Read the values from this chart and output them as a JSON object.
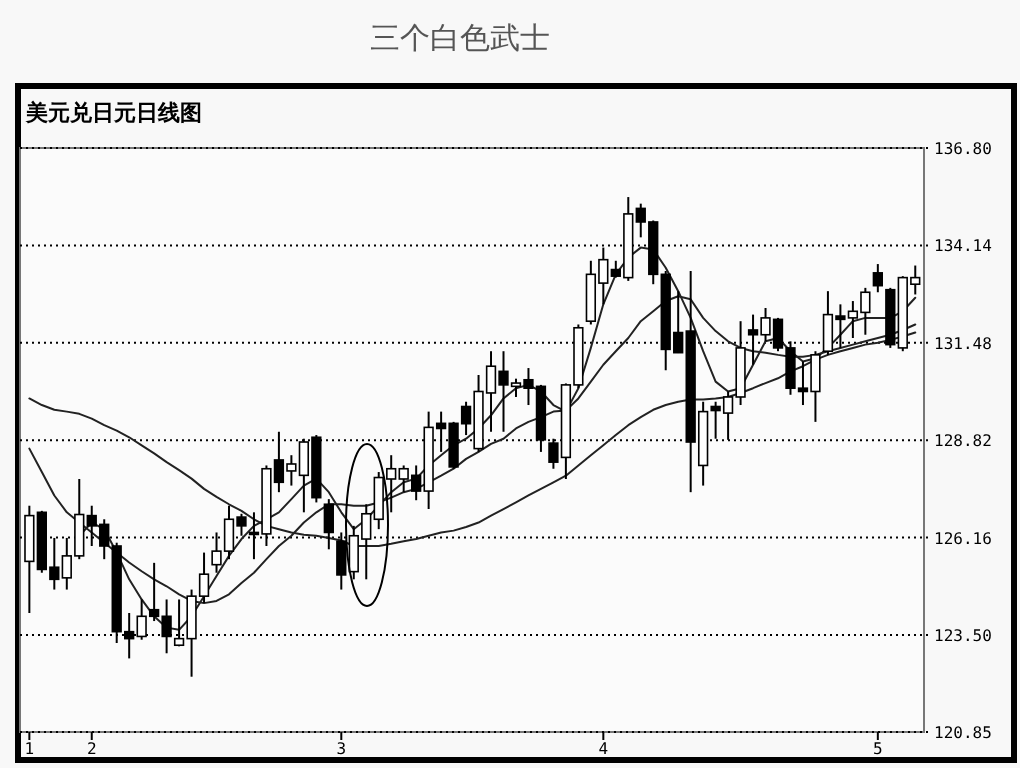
{
  "chart_data": {
    "type": "candlestick",
    "title": "三个白色武士",
    "subtitle": "美元兑日元日线图",
    "categories": [
      "1",
      null,
      null,
      null,
      null,
      "2",
      null,
      null,
      null,
      null,
      null,
      null,
      null,
      null,
      null,
      null,
      null,
      null,
      null,
      null,
      null,
      null,
      null,
      null,
      null,
      "3",
      null,
      null,
      null,
      null,
      null,
      null,
      null,
      null,
      null,
      null,
      null,
      null,
      null,
      null,
      null,
      null,
      null,
      null,
      null,
      null,
      "4",
      null,
      null,
      null,
      null,
      null,
      null,
      null,
      null,
      null,
      null,
      null,
      null,
      null,
      null,
      null,
      null,
      null,
      null,
      null,
      null,
      null,
      "5",
      null,
      null,
      null
    ],
    "ohlc": [
      [
        125.51,
        127.03,
        124.1,
        126.76
      ],
      [
        126.85,
        126.89,
        125.2,
        125.29
      ],
      [
        125.35,
        126.15,
        124.74,
        125.02
      ],
      [
        125.06,
        126.15,
        124.74,
        125.66
      ],
      [
        125.66,
        127.76,
        125.57,
        126.79
      ],
      [
        126.76,
        127.03,
        125.93,
        126.48
      ],
      [
        126.52,
        126.66,
        125.57,
        125.93
      ],
      [
        125.93,
        126.02,
        123.28,
        123.59
      ],
      [
        123.59,
        124.1,
        122.86,
        123.4
      ],
      [
        123.46,
        124.47,
        123.37,
        124.01
      ],
      [
        124.19,
        125.47,
        123.88,
        124.01
      ],
      [
        124.01,
        124.47,
        123.0,
        123.46
      ],
      [
        123.22,
        124.47,
        123.19,
        123.4
      ],
      [
        123.4,
        124.74,
        122.36,
        124.56
      ],
      [
        124.56,
        125.75,
        124.37,
        125.16
      ],
      [
        125.42,
        126.3,
        125.2,
        125.79
      ],
      [
        125.79,
        127.03,
        125.57,
        126.66
      ],
      [
        126.72,
        126.81,
        126.21,
        126.48
      ],
      [
        126.3,
        126.85,
        125.57,
        126.25
      ],
      [
        126.26,
        128.13,
        125.93,
        128.04
      ],
      [
        128.28,
        129.05,
        127.4,
        127.67
      ],
      [
        127.98,
        128.41,
        127.58,
        128.17
      ],
      [
        127.86,
        128.86,
        126.85,
        128.77
      ],
      [
        128.9,
        128.96,
        127.12,
        127.25
      ],
      [
        127.07,
        127.21,
        125.84,
        126.3
      ],
      [
        126.06,
        126.3,
        124.74,
        125.14
      ],
      [
        125.23,
        126.48,
        125.02,
        126.21
      ],
      [
        126.12,
        127.07,
        125.02,
        126.81
      ],
      [
        126.66,
        127.95,
        126.39,
        127.8
      ],
      [
        127.76,
        128.41,
        126.85,
        128.04
      ],
      [
        127.76,
        128.13,
        127.4,
        128.04
      ],
      [
        127.86,
        128.13,
        127.18,
        127.43
      ],
      [
        127.43,
        129.6,
        126.94,
        129.17
      ],
      [
        129.28,
        129.6,
        128.5,
        129.14
      ],
      [
        129.28,
        129.32,
        128.04,
        128.09
      ],
      [
        129.74,
        129.87,
        128.96,
        129.27
      ],
      [
        128.59,
        130.6,
        128.5,
        130.15
      ],
      [
        130.11,
        131.25,
        129.05,
        130.84
      ],
      [
        130.7,
        131.25,
        129.05,
        130.33
      ],
      [
        130.29,
        130.5,
        130.0,
        130.38
      ],
      [
        130.47,
        130.79,
        129.78,
        130.24
      ],
      [
        130.29,
        130.33,
        128.5,
        128.83
      ],
      [
        128.74,
        128.86,
        128.04,
        128.22
      ],
      [
        128.35,
        130.37,
        127.76,
        130.33
      ],
      [
        130.33,
        131.98,
        130.24,
        131.89
      ],
      [
        132.07,
        133.72,
        131.98,
        133.35
      ],
      [
        133.11,
        134.08,
        132.53,
        133.75
      ],
      [
        133.48,
        133.72,
        133.26,
        133.3
      ],
      [
        133.26,
        135.46,
        133.17,
        135.0
      ],
      [
        135.15,
        135.28,
        134.36,
        134.78
      ],
      [
        134.78,
        134.82,
        133.08,
        133.35
      ],
      [
        133.35,
        133.44,
        130.73,
        131.3
      ],
      [
        131.76,
        132.89,
        131.2,
        131.21
      ],
      [
        131.8,
        133.44,
        127.4,
        128.77
      ],
      [
        128.13,
        129.87,
        127.58,
        129.6
      ],
      [
        129.74,
        129.87,
        128.86,
        129.63
      ],
      [
        129.56,
        130.15,
        128.83,
        130.0
      ],
      [
        130.0,
        132.07,
        129.78,
        131.34
      ],
      [
        131.83,
        132.25,
        130.88,
        131.7
      ],
      [
        131.7,
        132.43,
        131.52,
        132.16
      ],
      [
        132.12,
        132.16,
        131.25,
        131.34
      ],
      [
        131.34,
        131.52,
        130.06,
        130.24
      ],
      [
        130.24,
        130.97,
        129.78,
        130.15
      ],
      [
        130.15,
        131.25,
        129.32,
        131.15
      ],
      [
        131.25,
        132.89,
        131.15,
        132.25
      ],
      [
        132.21,
        132.53,
        131.34,
        132.12
      ],
      [
        132.16,
        132.62,
        131.61,
        132.34
      ],
      [
        132.31,
        132.98,
        131.7,
        132.86
      ],
      [
        133.39,
        133.63,
        132.86,
        133.04
      ],
      [
        132.93,
        132.98,
        131.34,
        131.43
      ],
      [
        131.34,
        133.3,
        131.25,
        133.26
      ],
      [
        133.08,
        133.59,
        132.8,
        133.26
      ]
    ],
    "series": [
      {
        "type": "line",
        "color": "#222222",
        "values": [
          null,
          null,
          null,
          null,
          126.21,
          126.57,
          126.39,
          125.75,
          125.02,
          124.47,
          124.01,
          123.7,
          123.64,
          124.01,
          124.56,
          125.11,
          125.66,
          126.12,
          126.48,
          126.66,
          126.85,
          127.21,
          127.58,
          127.77,
          127.4,
          126.85,
          126.39,
          126.66,
          127.03,
          127.4,
          127.67,
          127.77,
          128.13,
          128.41,
          128.68,
          128.86,
          129.14,
          129.5,
          129.96,
          130.24,
          130.33,
          130.15,
          129.78,
          129.6,
          130.24,
          131.34,
          132.53,
          133.35,
          133.81,
          134.08,
          134.03,
          133.53,
          132.89,
          132.16,
          131.25,
          130.42,
          130.15,
          130.24,
          130.88,
          131.52,
          131.61,
          131.25,
          130.97,
          131.06,
          131.34,
          131.7,
          132.07,
          132.16,
          132.16,
          132.16,
          132.34,
          132.71
        ]
      },
      {
        "type": "line",
        "color": "#222222",
        "values": [
          128.59,
          127.95,
          127.31,
          126.85,
          126.57,
          126.3,
          126.02,
          125.75,
          125.48,
          125.24,
          125.02,
          124.83,
          124.61,
          124.43,
          124.37,
          124.43,
          124.61,
          124.92,
          125.2,
          125.57,
          125.93,
          126.21,
          126.57,
          126.85,
          127.07,
          127.07,
          127.03,
          127.03,
          127.12,
          127.25,
          127.4,
          127.49,
          127.67,
          127.85,
          128.04,
          128.31,
          128.5,
          128.72,
          128.86,
          129.14,
          129.32,
          129.45,
          129.6,
          129.63,
          129.96,
          130.42,
          130.88,
          131.25,
          131.61,
          132.07,
          132.34,
          132.62,
          132.75,
          132.67,
          132.16,
          131.8,
          131.52,
          131.34,
          131.25,
          131.21,
          131.15,
          131.1,
          131.1,
          131.15,
          131.25,
          131.34,
          131.43,
          131.52,
          131.61,
          131.7,
          131.83,
          131.98
        ]
      },
      {
        "type": "line",
        "color": "#222222",
        "values": [
          129.96,
          129.78,
          129.65,
          129.6,
          129.54,
          129.41,
          129.23,
          129.08,
          128.9,
          128.68,
          128.46,
          128.22,
          128.0,
          127.77,
          127.49,
          127.27,
          127.07,
          126.89,
          126.66,
          126.48,
          126.39,
          126.3,
          126.24,
          126.21,
          126.15,
          126.08,
          125.93,
          125.93,
          125.93,
          125.99,
          126.06,
          126.12,
          126.21,
          126.3,
          126.35,
          126.45,
          126.57,
          126.76,
          126.94,
          127.12,
          127.31,
          127.49,
          127.67,
          127.85,
          128.13,
          128.41,
          128.68,
          128.96,
          129.23,
          129.45,
          129.65,
          129.78,
          129.87,
          129.93,
          129.93,
          129.96,
          130.0,
          130.11,
          130.24,
          130.38,
          130.51,
          130.7,
          130.84,
          131.02,
          131.15,
          131.25,
          131.34,
          131.43,
          131.48,
          131.56,
          131.65,
          131.76
        ]
      }
    ],
    "ylim": [
      120.85,
      136.8
    ],
    "yticks": [
      {
        "value": 136.8,
        "label": "136.80"
      },
      134.14,
      131.48,
      128.82,
      126.16,
      {
        "value": 123.5,
        "label": "123.50"
      },
      120.85
    ],
    "grid": "y"
  }
}
